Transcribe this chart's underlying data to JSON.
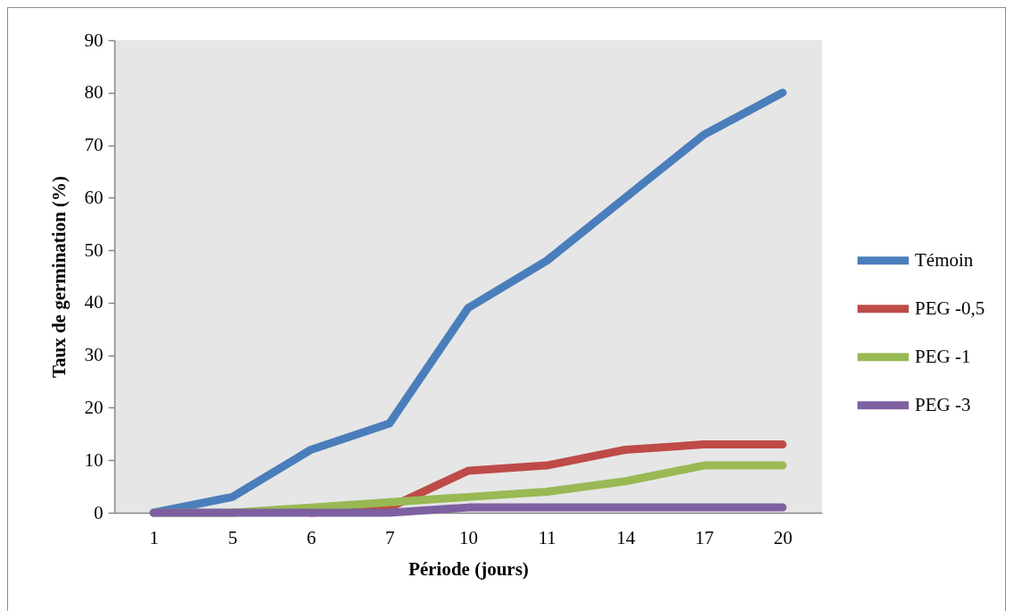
{
  "chart_data": {
    "type": "line",
    "xlabel": "Période (jours)",
    "ylabel": "Taux de germination (%)",
    "categories": [
      "1",
      "5",
      "6",
      "7",
      "10",
      "11",
      "14",
      "17",
      "20"
    ],
    "series": [
      {
        "name": "Témoin",
        "color": "#4a7ebb",
        "values": [
          0,
          3,
          12,
          17,
          39,
          48,
          60,
          72,
          80
        ]
      },
      {
        "name": "PEG -0,5",
        "color": "#be4b48",
        "values": [
          null,
          null,
          0,
          1,
          8,
          9,
          12,
          13,
          13
        ]
      },
      {
        "name": "PEG -1",
        "color": "#98b954",
        "values": [
          0,
          0,
          1,
          2,
          3,
          4,
          6,
          9,
          9
        ]
      },
      {
        "name": "PEG -3",
        "color": "#7d60a0",
        "values": [
          0,
          0,
          0,
          0,
          1,
          1,
          1,
          1,
          1
        ]
      }
    ],
    "ylim": [
      0,
      90
    ],
    "yticks": [
      0,
      10,
      20,
      30,
      40,
      50,
      60,
      70,
      80,
      90
    ],
    "grid": false,
    "legend": "right",
    "marker": "none",
    "line_style": "solid"
  }
}
